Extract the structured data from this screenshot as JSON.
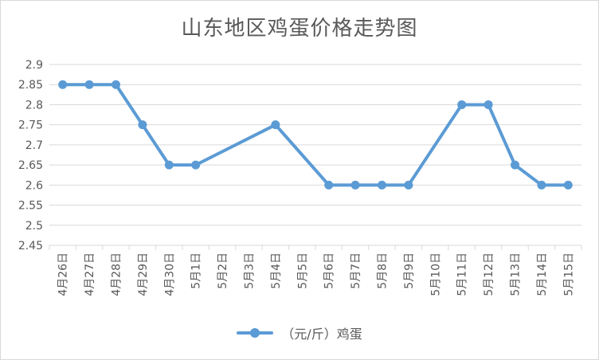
{
  "chart_data": {
    "type": "line",
    "title": "山东地区鸡蛋价格走势图",
    "categories": [
      "4月26日",
      "4月27日",
      "4月28日",
      "4月29日",
      "4月30日",
      "5月1日",
      "5月2日",
      "5月3日",
      "5月4日",
      "5月5日",
      "5月6日",
      "5月7日",
      "5月8日",
      "5月9日",
      "5月10日",
      "5月11日",
      "5月12日",
      "5月13日",
      "5月14日",
      "5月15日"
    ],
    "series": [
      {
        "name": "（元/斤）鸡蛋",
        "values": [
          2.85,
          2.85,
          2.85,
          2.75,
          2.65,
          2.65,
          null,
          null,
          2.75,
          null,
          2.6,
          2.6,
          2.6,
          2.6,
          null,
          2.8,
          2.8,
          2.65,
          2.6,
          2.6
        ],
        "color": "#5b9bd5"
      }
    ],
    "ylim": [
      2.45,
      2.9
    ],
    "yticks": [
      "2.45",
      "2.5",
      "2.55",
      "2.6",
      "2.65",
      "2.7",
      "2.75",
      "2.8",
      "2.85",
      "2.9"
    ],
    "grid": true,
    "legend_position": "bottom"
  }
}
